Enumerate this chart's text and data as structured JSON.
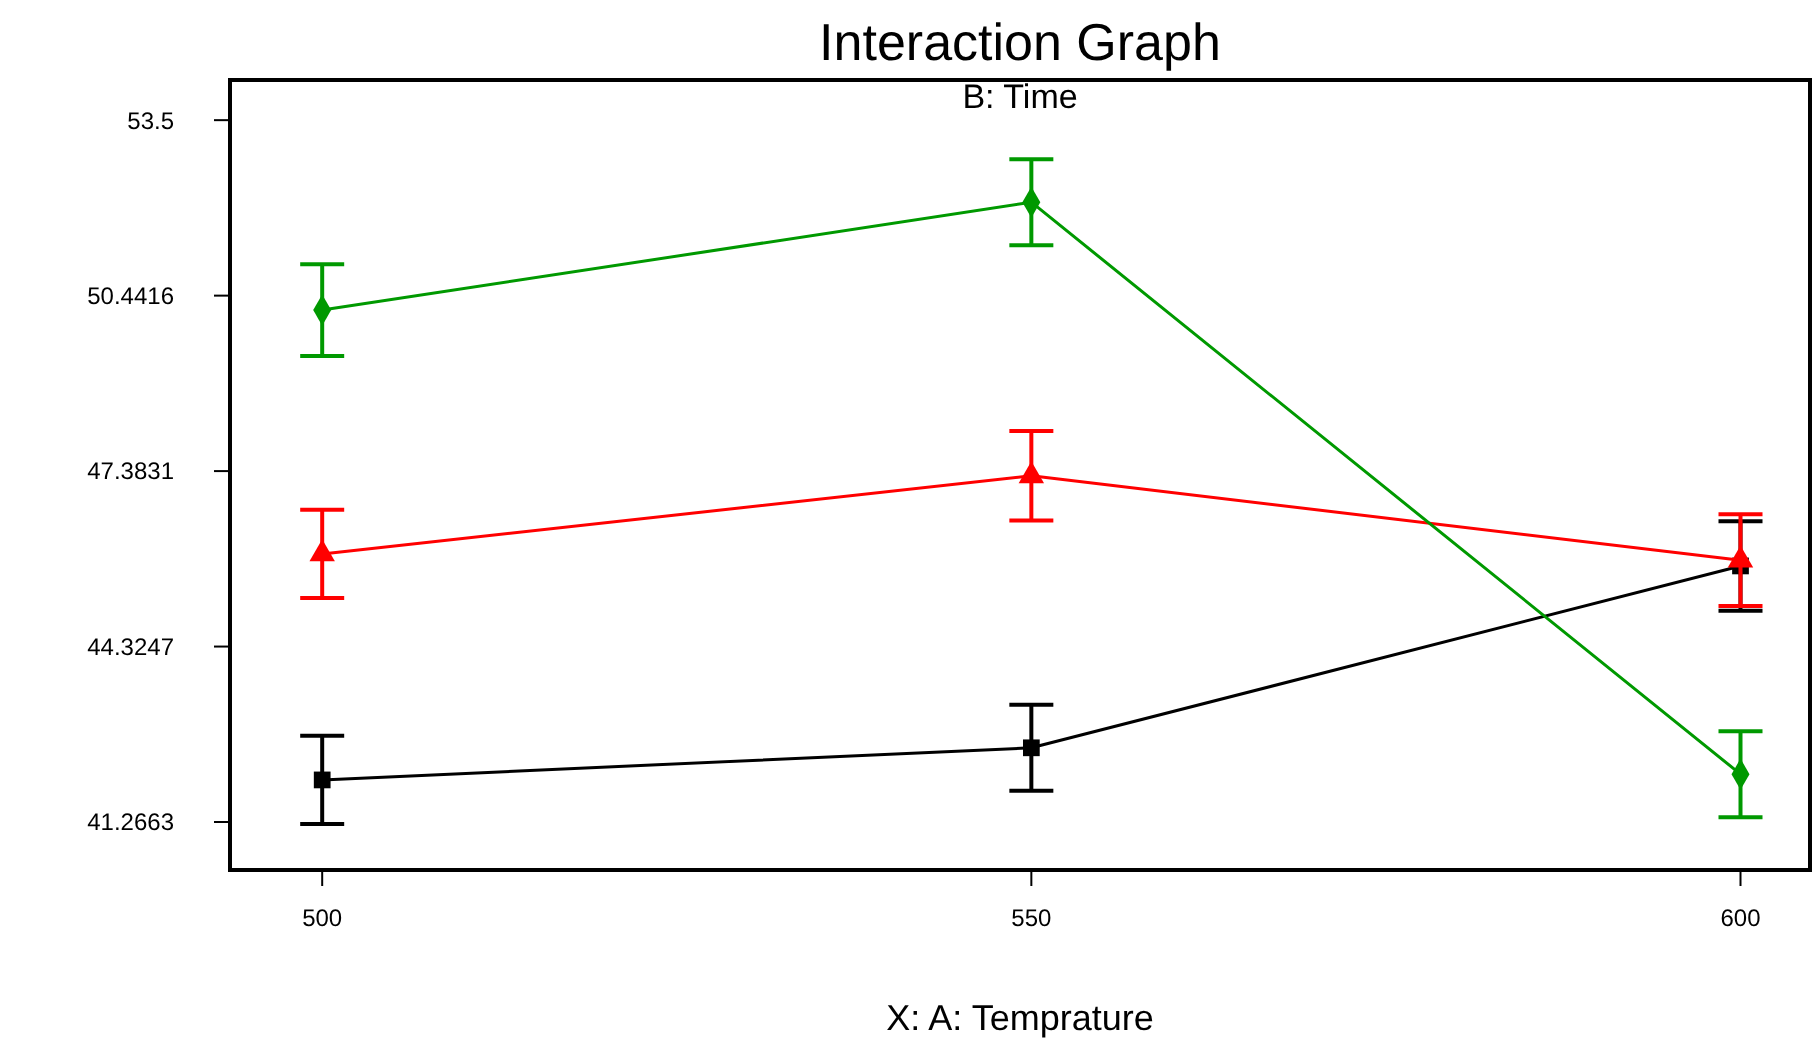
{
  "chart_data": {
    "type": "line",
    "title": "Interaction Graph",
    "subtitle": "B: Time",
    "xlabel": "X: A: Temprature",
    "x": [
      500,
      550,
      600
    ],
    "series": [
      {
        "color": "#000000",
        "marker": "square",
        "values": [
          42.0,
          42.56,
          45.73
        ],
        "errors": [
          0.77,
          0.75,
          0.78
        ]
      },
      {
        "color": "#ff0000",
        "marker": "triangle",
        "values": [
          45.94,
          47.3,
          45.83
        ],
        "errors": [
          0.77,
          0.78,
          0.8
        ]
      },
      {
        "color": "#009900",
        "marker": "diamond",
        "values": [
          50.19,
          52.07,
          42.1
        ],
        "errors": [
          0.8,
          0.75,
          0.75
        ]
      }
    ],
    "xlim": [
      493.5,
      604.9
    ],
    "xticks": [
      500,
      550,
      600
    ],
    "ylim": [
      40.43,
      54.2
    ],
    "yticks": [
      41.2663,
      44.3247,
      47.3831,
      50.4416,
      53.5
    ],
    "grid": false
  }
}
